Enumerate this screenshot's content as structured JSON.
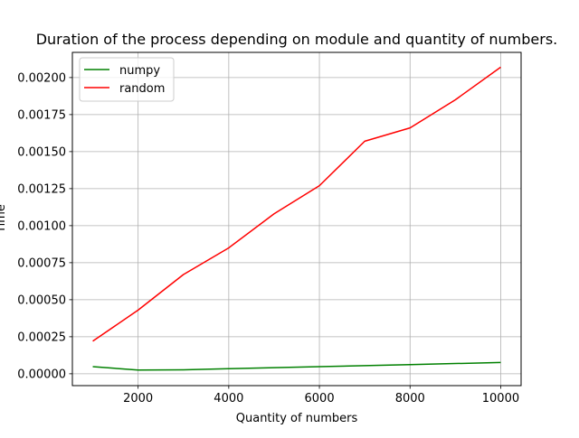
{
  "chart_data": {
    "type": "line",
    "title": "Duration of the process depending on module and quantity of numbers.",
    "xlabel": "Quantity of numbers",
    "ylabel": "Time",
    "xlim": [
      550,
      10450
    ],
    "ylim": [
      -8e-05,
      0.00217
    ],
    "grid": true,
    "legend_position": "top-left",
    "xticks": [
      2000,
      4000,
      6000,
      8000,
      10000
    ],
    "xtick_labels": [
      "2000",
      "4000",
      "6000",
      "8000",
      "10000"
    ],
    "yticks": [
      0,
      0.00025,
      0.0005,
      0.00075,
      0.001,
      0.00125,
      0.0015,
      0.00175,
      0.002
    ],
    "ytick_labels": [
      "0.00000",
      "0.00025",
      "0.00050",
      "0.00075",
      "0.00100",
      "0.00125",
      "0.00150",
      "0.00175",
      "0.00200"
    ],
    "x": [
      1000,
      2000,
      3000,
      4000,
      5000,
      6000,
      7000,
      8000,
      9000,
      10000
    ],
    "series": [
      {
        "name": "numpy",
        "color": "#008000",
        "values": [
          4.8e-05,
          2.5e-05,
          2.7e-05,
          3.4e-05,
          4.1e-05,
          4.8e-05,
          5.5e-05,
          6.2e-05,
          6.9e-05,
          7.6e-05
        ]
      },
      {
        "name": "random",
        "color": "#ff0000",
        "values": [
          0.00022,
          0.00043,
          0.00067,
          0.00085,
          0.00108,
          0.00127,
          0.00157,
          0.00166,
          0.00185,
          0.00207
        ]
      }
    ]
  }
}
